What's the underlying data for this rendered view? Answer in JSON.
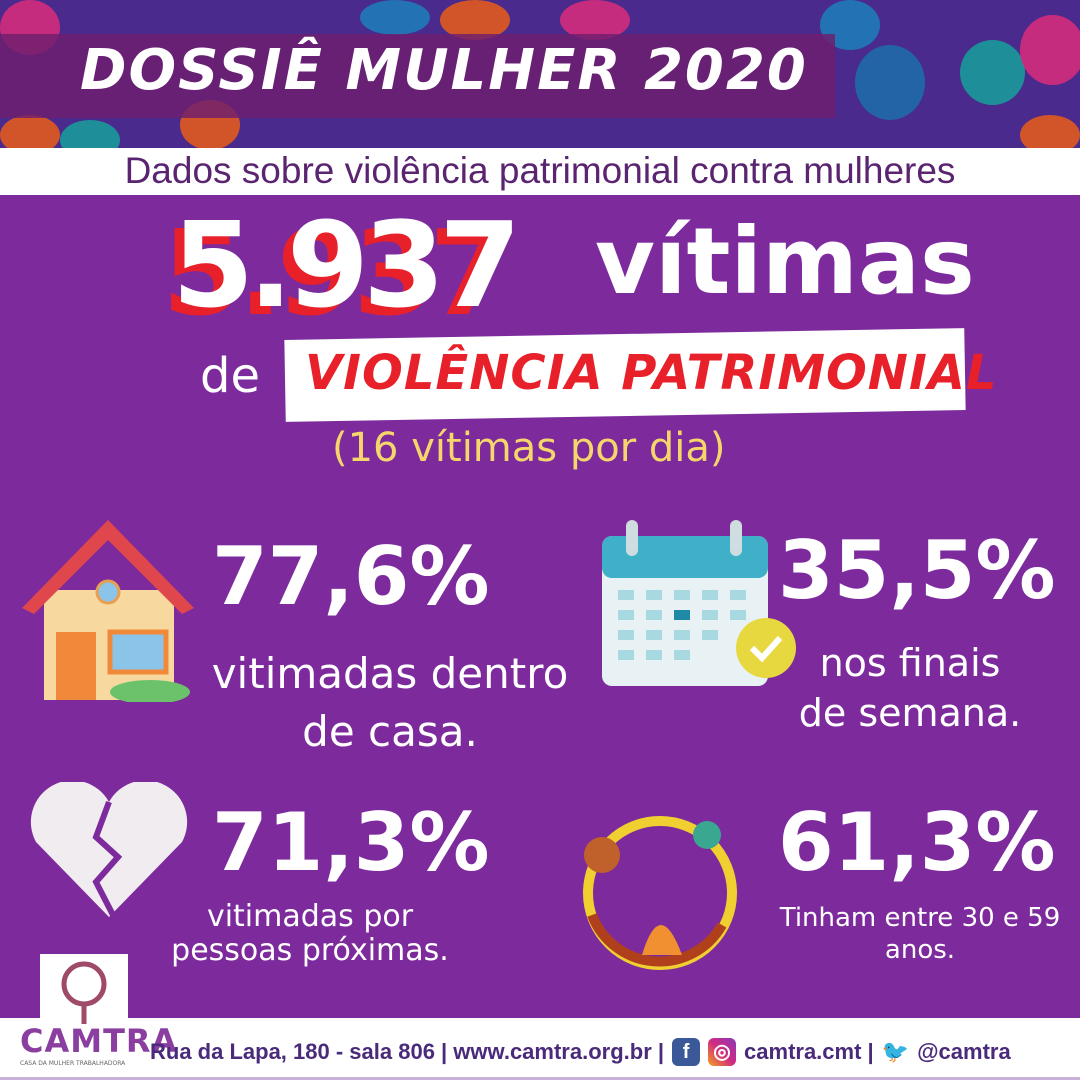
{
  "header": {
    "title": "DOSSIÊ MULHER 2020",
    "subtitle": "Dados sobre violência patrimonial contra mulheres"
  },
  "headline": {
    "number": "5.937",
    "victims": "vítimas",
    "de": "de",
    "category": "VIOLÊNCIA PATRIMONIAL",
    "per_day": "(16  vítimas por dia)"
  },
  "stats": [
    {
      "value": "77,6%",
      "line1": "vitimadas dentro",
      "line2": "de casa.",
      "icon": "house-icon"
    },
    {
      "value": "35,5%",
      "line1": "nos finais",
      "line2": "de semana.",
      "icon": "calendar-check-icon"
    },
    {
      "value": "71,3%",
      "line1": "vitimadas por",
      "line2": "pessoas próximas.",
      "icon": "broken-heart-icon"
    },
    {
      "value": "61,3%",
      "line1": "Tinham entre 30 e 59",
      "line2": "anos.",
      "icon": "women-circle-icon"
    }
  ],
  "footer": {
    "logo": "CAMTRA",
    "logo_sub": "CASA DA MULHER TRABALHADORA",
    "address": "Rua da Lapa, 180 - sala 806 | www.camtra.org.br |",
    "social_handle": "camtra.cmt |",
    "twitter_handle": "@camtra"
  },
  "colors": {
    "purple": "#7d2a9d",
    "red": "#e8202a",
    "yellow": "#f5d66b"
  }
}
